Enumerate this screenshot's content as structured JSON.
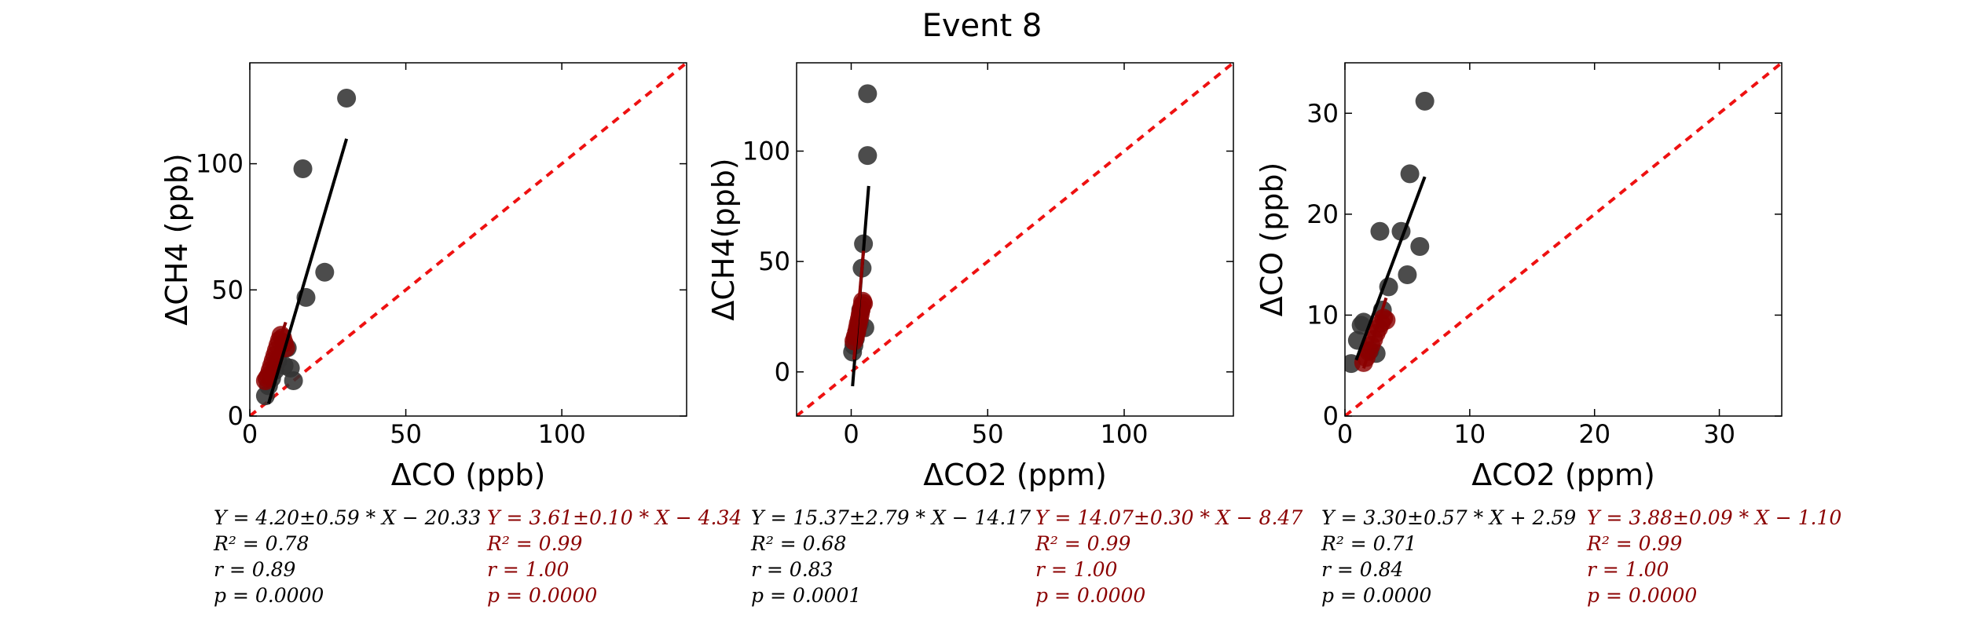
{
  "figure": {
    "title": "Event 8",
    "colors": {
      "dark": "#000000",
      "red": "#8b0000",
      "diag": "#ee1111",
      "grey_points": "#333333"
    }
  },
  "chart_data": [
    {
      "type": "scatter",
      "title": "",
      "xlabel": "ΔCO (ppb)",
      "ylabel": "ΔCH4 (ppb)",
      "xlim": [
        0,
        140
      ],
      "ylim": [
        0,
        140
      ],
      "xticks": [
        "0",
        "50",
        "100"
      ],
      "yticks": [
        "0",
        "50",
        "100"
      ],
      "grid": false,
      "one_to_one_line": true,
      "series": [
        {
          "points": [
            [
              5,
              8
            ],
            [
              6,
              12
            ],
            [
              7,
              15
            ],
            [
              8,
              18
            ],
            [
              9,
              22
            ],
            [
              11,
              20
            ],
            [
              12,
              27
            ],
            [
              13,
              19
            ],
            [
              14,
              14
            ],
            [
              18,
              47
            ],
            [
              24,
              57
            ],
            [
              17,
              98
            ],
            [
              31,
              126
            ]
          ],
          "fit": {
            "slope": 4.2,
            "intercept": -20.33,
            "x_range": [
              6,
              31
            ]
          }
        },
        {
          "points": [
            [
              5,
              14
            ],
            [
              5.5,
              15
            ],
            [
              6,
              16
            ],
            [
              6.5,
              18
            ],
            [
              7,
              20
            ],
            [
              7.5,
              22
            ],
            [
              8,
              24
            ],
            [
              8.5,
              26
            ],
            [
              9,
              28
            ],
            [
              9.5,
              30
            ],
            [
              10,
              32
            ],
            [
              10.5,
              31
            ],
            [
              11,
              29
            ],
            [
              11.5,
              27
            ]
          ],
          "fit": {
            "slope": 3.61,
            "intercept": -4.34,
            "x_range": [
              5,
              11.5
            ]
          }
        }
      ],
      "stats": [
        {
          "eq": "Y = 4.20±0.59 * X − 20.33",
          "r2": "R² = 0.78",
          "r": "r = 0.89",
          "p": "p = 0.0000"
        },
        {
          "eq": "Y = 3.61±0.10 * X − 4.34",
          "r2": "R² = 0.99",
          "r": "r = 1.00",
          "p": "p = 0.0000"
        }
      ]
    },
    {
      "type": "scatter",
      "title": "",
      "xlabel": "ΔCO2 (ppm)",
      "ylabel": "ΔCH4(ppb)",
      "xlim": [
        -20,
        140
      ],
      "ylim": [
        -20,
        140
      ],
      "xticks": [
        "0",
        "50",
        "100"
      ],
      "yticks": [
        "0",
        "50",
        "100"
      ],
      "grid": false,
      "one_to_one_line": true,
      "series": [
        {
          "points": [
            [
              0.5,
              9
            ],
            [
              1,
              12
            ],
            [
              1.5,
              15
            ],
            [
              2,
              18
            ],
            [
              3,
              22
            ],
            [
              3.5,
              28
            ],
            [
              4,
              47
            ],
            [
              4.5,
              58
            ],
            [
              5,
              20
            ],
            [
              6,
              98
            ],
            [
              6,
              126
            ]
          ],
          "fit": {
            "slope": 15.37,
            "intercept": -14.17,
            "x_range": [
              0.5,
              6.4
            ]
          }
        },
        {
          "points": [
            [
              1,
              14
            ],
            [
              1.5,
              16
            ],
            [
              2,
              18
            ],
            [
              2.3,
              20
            ],
            [
              2.6,
              22
            ],
            [
              3,
              24
            ],
            [
              3.3,
              26
            ],
            [
              3.6,
              28
            ],
            [
              4,
              30
            ],
            [
              4.2,
              32
            ],
            [
              4.5,
              31
            ]
          ],
          "fit": {
            "slope": 14.07,
            "intercept": -8.47,
            "x_range": [
              1,
              4.5
            ]
          }
        }
      ],
      "stats": [
        {
          "eq": "Y = 15.37±2.79 * X − 14.17",
          "r2": "R² = 0.68",
          "r": "r = 0.83",
          "p": "p = 0.0001"
        },
        {
          "eq": "Y = 14.07±0.30 * X − 8.47",
          "r2": "R² = 0.99",
          "r": "r = 1.00",
          "p": "p = 0.0000"
        }
      ]
    },
    {
      "type": "scatter",
      "title": "",
      "xlabel": "ΔCO2 (ppm)",
      "ylabel": "ΔCO (ppb)",
      "xlim": [
        0,
        35
      ],
      "ylim": [
        0,
        35
      ],
      "xticks": [
        "0",
        "10",
        "20",
        "30"
      ],
      "yticks": [
        "0",
        "10",
        "20",
        "30"
      ],
      "grid": false,
      "one_to_one_line": true,
      "series": [
        {
          "points": [
            [
              0.5,
              5.2
            ],
            [
              1,
              7.5
            ],
            [
              1.3,
              9
            ],
            [
              1.5,
              9.3
            ],
            [
              2,
              6.5
            ],
            [
              2.5,
              6.2
            ],
            [
              3,
              10.5
            ],
            [
              3.5,
              12.8
            ],
            [
              2.8,
              18.3
            ],
            [
              4.5,
              18.3
            ],
            [
              5,
              14
            ],
            [
              5.2,
              24
            ],
            [
              6,
              16.8
            ],
            [
              6.4,
              31.2
            ]
          ],
          "fit": {
            "slope": 3.3,
            "intercept": 2.59,
            "x_range": [
              0.9,
              6.4
            ]
          }
        },
        {
          "points": [
            [
              1.5,
              5.3
            ],
            [
              1.7,
              5.8
            ],
            [
              1.9,
              6.4
            ],
            [
              2.1,
              7
            ],
            [
              2.3,
              7.6
            ],
            [
              2.5,
              8.2
            ],
            [
              2.7,
              8.7
            ],
            [
              2.9,
              9.2
            ],
            [
              3.1,
              9.7
            ],
            [
              3.3,
              9.5
            ]
          ],
          "fit": {
            "slope": 3.88,
            "intercept": -1.1,
            "x_range": [
              1.5,
              3.3
            ]
          }
        }
      ],
      "stats": [
        {
          "eq": "Y = 3.30±0.57 * X + 2.59",
          "r2": "R² = 0.71",
          "r": "r = 0.84",
          "p": "p = 0.0000"
        },
        {
          "eq": "Y = 3.88±0.09 * X − 1.10",
          "r2": "R² = 0.99",
          "r": "r = 1.00",
          "p": "p = 0.0000"
        }
      ]
    }
  ]
}
